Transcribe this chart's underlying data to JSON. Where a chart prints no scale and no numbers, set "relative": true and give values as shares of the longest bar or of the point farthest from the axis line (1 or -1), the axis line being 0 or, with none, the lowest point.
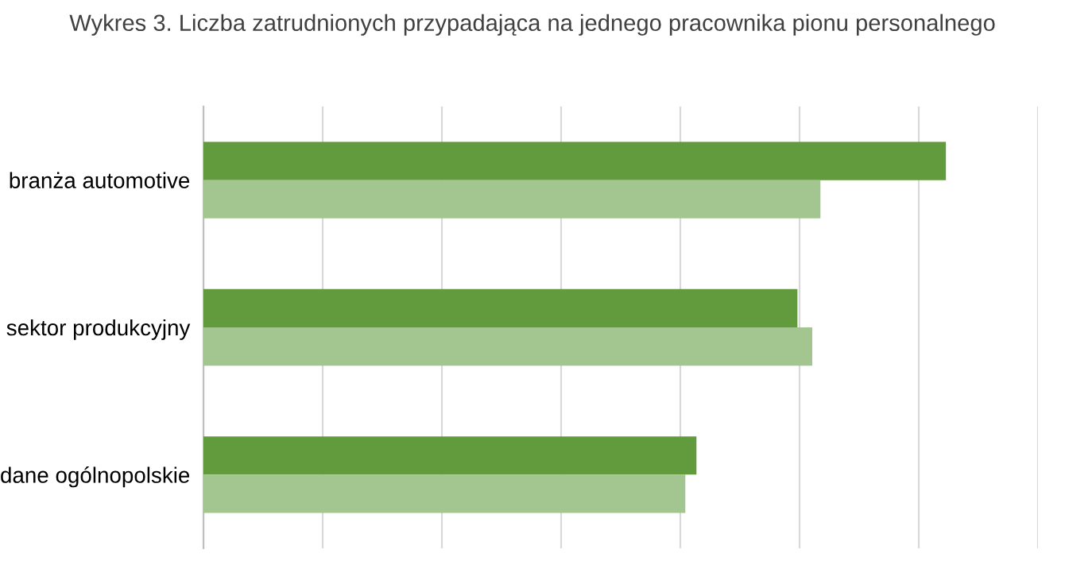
{
  "chart_data": {
    "type": "bar",
    "orientation": "horizontal",
    "relative": true,
    "title": "Wykres 3. Liczba zatrudnionych przypadająca na jednego pracownika pionu personalnego",
    "categories": [
      "branża automotive",
      "sektor produkcyjny",
      "dane ogólnopolskie"
    ],
    "series": [
      {
        "color": "#629a3e",
        "values": [
          1,
          0.8,
          0.664
        ]
      },
      {
        "color": "#a3c58f",
        "values": [
          0.831,
          0.82,
          0.649
        ]
      }
    ],
    "grid": "x",
    "legend": false
  }
}
